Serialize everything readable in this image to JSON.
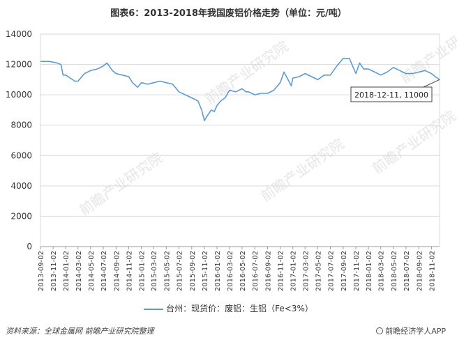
{
  "title": "图表6：2013-2018年我国废铝价格走势（单位：元/吨）",
  "legend": "台州：现货价：废铝：生铝（Fe<3%）",
  "annotation": "2018-12-11, 11000",
  "source": "资料来源：全球金属网  前瞻产业研究院整理",
  "brand": "前瞻经济学人APP",
  "watermark": "前瞻产业研究院",
  "series_color": "#5b9bd5",
  "chart_data": {
    "type": "line",
    "ylim": [
      0,
      14000
    ],
    "yticks": [
      0,
      2000,
      4000,
      6000,
      8000,
      10000,
      12000,
      14000
    ],
    "xticks": [
      "2013-09-02",
      "2013-11-02",
      "2014-01-02",
      "2014-03-02",
      "2014-05-02",
      "2014-07-02",
      "2014-09-02",
      "2014-11-02",
      "2015-01-02",
      "2015-03-02",
      "2015-05-02",
      "2015-07-02",
      "2015-09-02",
      "2015-11-02",
      "2016-01-02",
      "2016-03-02",
      "2016-05-02",
      "2016-07-02",
      "2016-09-02",
      "2016-11-02",
      "2017-01-02",
      "2017-03-02",
      "2017-05-02",
      "2017-07-02",
      "2017-09-02",
      "2017-11-02",
      "2018-01-02",
      "2018-03-02",
      "2018-05-02",
      "2018-07-02",
      "2018-09-02",
      "2018-11-02"
    ],
    "series": [
      {
        "name": "台州：现货价：废铝：生铝（Fe<3%）",
        "x": [
          "2013-09-02",
          "2013-10-15",
          "2013-11-20",
          "2013-12-10",
          "2013-12-20",
          "2014-01-02",
          "2014-02-15",
          "2014-03-02",
          "2014-04-02",
          "2014-05-02",
          "2014-06-02",
          "2014-07-02",
          "2014-07-20",
          "2014-08-15",
          "2014-09-02",
          "2014-10-02",
          "2014-11-02",
          "2014-11-20",
          "2014-12-15",
          "2015-01-02",
          "2015-02-02",
          "2015-03-02",
          "2015-04-02",
          "2015-05-02",
          "2015-06-02",
          "2015-07-02",
          "2015-08-02",
          "2015-09-02",
          "2015-10-02",
          "2015-10-20",
          "2015-11-02",
          "2015-11-15",
          "2015-11-25",
          "2015-12-05",
          "2015-12-20",
          "2016-01-02",
          "2016-01-20",
          "2016-02-10",
          "2016-03-02",
          "2016-04-02",
          "2016-05-02",
          "2016-05-20",
          "2016-06-02",
          "2016-07-02",
          "2016-08-02",
          "2016-09-02",
          "2016-10-02",
          "2016-11-02",
          "2016-11-20",
          "2016-12-10",
          "2016-12-25",
          "2017-01-02",
          "2017-02-02",
          "2017-03-02",
          "2017-04-02",
          "2017-05-02",
          "2017-06-02",
          "2017-07-02",
          "2017-08-02",
          "2017-09-02",
          "2017-10-02",
          "2017-11-02",
          "2017-11-20",
          "2017-12-10",
          "2018-01-02",
          "2018-02-02",
          "2018-03-02",
          "2018-04-02",
          "2018-05-02",
          "2018-06-02",
          "2018-07-02",
          "2018-08-02",
          "2018-09-02",
          "2018-10-02",
          "2018-11-02",
          "2018-11-20",
          "2018-12-11"
        ],
        "values": [
          12200,
          12200,
          12100,
          12000,
          11300,
          11300,
          10900,
          10900,
          11400,
          11600,
          11700,
          11900,
          12100,
          11600,
          11400,
          11300,
          11200,
          10800,
          10500,
          10800,
          10700,
          10800,
          10900,
          10800,
          10700,
          10200,
          10000,
          9800,
          9600,
          9000,
          8300,
          8600,
          8800,
          9000,
          8900,
          9300,
          9600,
          9800,
          10300,
          10200,
          10400,
          10200,
          10200,
          10000,
          10100,
          10100,
          10300,
          10800,
          11500,
          11000,
          10600,
          11100,
          11200,
          11400,
          11200,
          11000,
          11300,
          11300,
          11900,
          12400,
          12400,
          11400,
          12100,
          11700,
          11700,
          11500,
          11300,
          11500,
          11800,
          11600,
          11400,
          11400,
          11500,
          11600,
          11400,
          11200,
          11000
        ]
      }
    ]
  }
}
